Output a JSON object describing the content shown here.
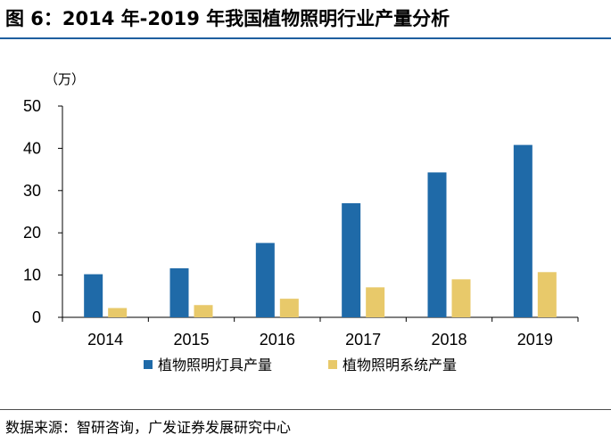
{
  "header": {
    "title": "图 6：2014 年-2019 年我国植物照明行业产量分析"
  },
  "footer": {
    "source": "数据来源：智研咨询，广发证券发展研究中心"
  },
  "colors": {
    "accent": "#1f5f9f"
  },
  "chart_data": {
    "type": "bar",
    "categories": [
      "2014",
      "2015",
      "2016",
      "2017",
      "2018",
      "2019"
    ],
    "series": [
      {
        "name": "植物照明灯具产量",
        "color": "#1f6aa8",
        "values": [
          10.2,
          11.6,
          17.6,
          27.0,
          34.3,
          40.8
        ]
      },
      {
        "name": "植物照明系统产量",
        "color": "#e8c96a",
        "values": [
          2.2,
          2.9,
          4.4,
          7.1,
          9.0,
          10.7
        ]
      }
    ],
    "unit_label": "（万）",
    "ylim": [
      0,
      50
    ],
    "yticks": [
      0,
      10,
      20,
      30,
      40,
      50
    ],
    "grid": false,
    "legend": "bottom"
  }
}
